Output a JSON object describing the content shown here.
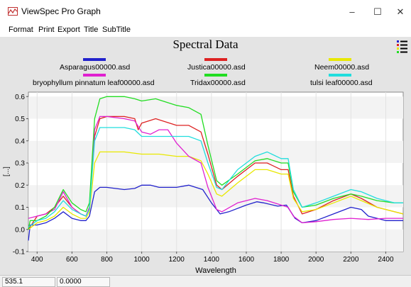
{
  "window": {
    "title": "ViewSpec Pro Graph",
    "min_glyph": "–",
    "max_glyph": "☐",
    "close_glyph": "✕"
  },
  "menu": [
    "Format",
    "Print",
    "Export",
    "Title",
    "SubTitle"
  ],
  "status": {
    "x_value": "535.1",
    "y_value": "0.0000"
  },
  "chart_data": {
    "type": "line",
    "title": "Spectral Data",
    "xlabel": "Wavelength",
    "ylabel": "[...]",
    "xlim": [
      350,
      2500
    ],
    "ylim": [
      -0.1,
      0.62
    ],
    "xticks": [
      400,
      600,
      800,
      1000,
      1200,
      1400,
      1600,
      1800,
      2000,
      2200,
      2400
    ],
    "yticks": [
      -0.1,
      0.0,
      0.1,
      0.2,
      0.3,
      0.4,
      0.5,
      0.6
    ],
    "grid": true,
    "legend_placement": "top",
    "series": [
      {
        "name": "Asparagus00000.asd",
        "color": "#2222cc",
        "points": [
          [
            350,
            -0.05
          ],
          [
            360,
            0.02
          ],
          [
            400,
            0.02
          ],
          [
            450,
            0.03
          ],
          [
            500,
            0.05
          ],
          [
            550,
            0.08
          ],
          [
            600,
            0.05
          ],
          [
            650,
            0.04
          ],
          [
            680,
            0.04
          ],
          [
            700,
            0.06
          ],
          [
            730,
            0.17
          ],
          [
            760,
            0.19
          ],
          [
            800,
            0.19
          ],
          [
            900,
            0.18
          ],
          [
            960,
            0.185
          ],
          [
            1000,
            0.2
          ],
          [
            1050,
            0.2
          ],
          [
            1100,
            0.19
          ],
          [
            1200,
            0.19
          ],
          [
            1270,
            0.2
          ],
          [
            1350,
            0.18
          ],
          [
            1400,
            0.12
          ],
          [
            1450,
            0.07
          ],
          [
            1500,
            0.08
          ],
          [
            1600,
            0.11
          ],
          [
            1660,
            0.125
          ],
          [
            1700,
            0.12
          ],
          [
            1780,
            0.105
          ],
          [
            1830,
            0.11
          ],
          [
            1880,
            0.05
          ],
          [
            1920,
            0.03
          ],
          [
            2000,
            0.04
          ],
          [
            2100,
            0.07
          ],
          [
            2200,
            0.1
          ],
          [
            2260,
            0.09
          ],
          [
            2300,
            0.06
          ],
          [
            2400,
            0.04
          ],
          [
            2500,
            0.04
          ]
        ]
      },
      {
        "name": "Justica00000.asd",
        "color": "#dd2222",
        "points": [
          [
            350,
            0.0
          ],
          [
            400,
            0.06
          ],
          [
            450,
            0.07
          ],
          [
            500,
            0.1
          ],
          [
            550,
            0.15
          ],
          [
            600,
            0.1
          ],
          [
            650,
            0.07
          ],
          [
            680,
            0.06
          ],
          [
            700,
            0.1
          ],
          [
            730,
            0.42
          ],
          [
            760,
            0.5
          ],
          [
            800,
            0.51
          ],
          [
            900,
            0.51
          ],
          [
            960,
            0.5
          ],
          [
            980,
            0.45
          ],
          [
            1000,
            0.48
          ],
          [
            1080,
            0.5
          ],
          [
            1200,
            0.47
          ],
          [
            1270,
            0.47
          ],
          [
            1340,
            0.44
          ],
          [
            1380,
            0.34
          ],
          [
            1430,
            0.2
          ],
          [
            1460,
            0.18
          ],
          [
            1550,
            0.24
          ],
          [
            1650,
            0.3
          ],
          [
            1720,
            0.3
          ],
          [
            1800,
            0.27
          ],
          [
            1840,
            0.27
          ],
          [
            1870,
            0.15
          ],
          [
            1920,
            0.07
          ],
          [
            2000,
            0.09
          ],
          [
            2100,
            0.13
          ],
          [
            2200,
            0.16
          ],
          [
            2260,
            0.14
          ],
          [
            2350,
            0.1
          ],
          [
            2450,
            0.08
          ],
          [
            2500,
            0.07
          ]
        ]
      },
      {
        "name": "Neem00000.asd",
        "color": "#e8e800",
        "points": [
          [
            350,
            0.0
          ],
          [
            400,
            0.03
          ],
          [
            450,
            0.04
          ],
          [
            500,
            0.06
          ],
          [
            550,
            0.1
          ],
          [
            600,
            0.07
          ],
          [
            650,
            0.05
          ],
          [
            680,
            0.05
          ],
          [
            700,
            0.08
          ],
          [
            730,
            0.3
          ],
          [
            760,
            0.35
          ],
          [
            900,
            0.35
          ],
          [
            1000,
            0.34
          ],
          [
            1100,
            0.34
          ],
          [
            1200,
            0.33
          ],
          [
            1270,
            0.33
          ],
          [
            1340,
            0.31
          ],
          [
            1380,
            0.25
          ],
          [
            1430,
            0.16
          ],
          [
            1460,
            0.15
          ],
          [
            1550,
            0.21
          ],
          [
            1650,
            0.27
          ],
          [
            1720,
            0.27
          ],
          [
            1800,
            0.25
          ],
          [
            1840,
            0.25
          ],
          [
            1870,
            0.14
          ],
          [
            1920,
            0.08
          ],
          [
            2000,
            0.09
          ],
          [
            2100,
            0.12
          ],
          [
            2200,
            0.15
          ],
          [
            2260,
            0.13
          ],
          [
            2350,
            0.1
          ],
          [
            2450,
            0.08
          ],
          [
            2500,
            0.07
          ]
        ]
      },
      {
        "name": "bryophyllum pinnatum leaf00000.asd",
        "color": "#e020d0",
        "points": [
          [
            350,
            0.05
          ],
          [
            400,
            0.06
          ],
          [
            450,
            0.07
          ],
          [
            500,
            0.09
          ],
          [
            550,
            0.17
          ],
          [
            600,
            0.1
          ],
          [
            650,
            0.07
          ],
          [
            680,
            0.06
          ],
          [
            700,
            0.1
          ],
          [
            730,
            0.45
          ],
          [
            760,
            0.51
          ],
          [
            800,
            0.51
          ],
          [
            900,
            0.5
          ],
          [
            960,
            0.49
          ],
          [
            1000,
            0.44
          ],
          [
            1050,
            0.43
          ],
          [
            1100,
            0.45
          ],
          [
            1150,
            0.45
          ],
          [
            1200,
            0.39
          ],
          [
            1270,
            0.33
          ],
          [
            1340,
            0.3
          ],
          [
            1380,
            0.19
          ],
          [
            1430,
            0.09
          ],
          [
            1460,
            0.08
          ],
          [
            1550,
            0.12
          ],
          [
            1650,
            0.14
          ],
          [
            1720,
            0.13
          ],
          [
            1800,
            0.11
          ],
          [
            1840,
            0.1
          ],
          [
            1870,
            0.06
          ],
          [
            1920,
            0.03
          ],
          [
            2000,
            0.035
          ],
          [
            2100,
            0.045
          ],
          [
            2200,
            0.05
          ],
          [
            2300,
            0.045
          ],
          [
            2400,
            0.05
          ],
          [
            2500,
            0.05
          ]
        ]
      },
      {
        "name": "Tridax00000.asd",
        "color": "#22dd22",
        "points": [
          [
            350,
            0.0
          ],
          [
            360,
            0.04
          ],
          [
            400,
            0.04
          ],
          [
            450,
            0.06
          ],
          [
            500,
            0.1
          ],
          [
            550,
            0.18
          ],
          [
            600,
            0.12
          ],
          [
            650,
            0.09
          ],
          [
            680,
            0.08
          ],
          [
            700,
            0.12
          ],
          [
            730,
            0.5
          ],
          [
            760,
            0.59
          ],
          [
            800,
            0.6
          ],
          [
            900,
            0.6
          ],
          [
            960,
            0.59
          ],
          [
            1000,
            0.58
          ],
          [
            1080,
            0.59
          ],
          [
            1200,
            0.56
          ],
          [
            1270,
            0.55
          ],
          [
            1340,
            0.52
          ],
          [
            1380,
            0.38
          ],
          [
            1430,
            0.22
          ],
          [
            1460,
            0.2
          ],
          [
            1550,
            0.25
          ],
          [
            1650,
            0.31
          ],
          [
            1720,
            0.32
          ],
          [
            1800,
            0.3
          ],
          [
            1840,
            0.3
          ],
          [
            1870,
            0.17
          ],
          [
            1920,
            0.1
          ],
          [
            2000,
            0.11
          ],
          [
            2100,
            0.14
          ],
          [
            2200,
            0.16
          ],
          [
            2260,
            0.15
          ],
          [
            2350,
            0.13
          ],
          [
            2450,
            0.12
          ],
          [
            2500,
            0.12
          ]
        ]
      },
      {
        "name": "tulsi leaf00000.asd",
        "color": "#22dddd",
        "points": [
          [
            350,
            0.01
          ],
          [
            400,
            0.04
          ],
          [
            450,
            0.05
          ],
          [
            500,
            0.08
          ],
          [
            550,
            0.13
          ],
          [
            600,
            0.09
          ],
          [
            650,
            0.07
          ],
          [
            680,
            0.06
          ],
          [
            700,
            0.09
          ],
          [
            730,
            0.4
          ],
          [
            760,
            0.46
          ],
          [
            900,
            0.46
          ],
          [
            960,
            0.45
          ],
          [
            1000,
            0.42
          ],
          [
            1100,
            0.42
          ],
          [
            1200,
            0.42
          ],
          [
            1270,
            0.42
          ],
          [
            1340,
            0.4
          ],
          [
            1380,
            0.3
          ],
          [
            1430,
            0.19
          ],
          [
            1460,
            0.18
          ],
          [
            1550,
            0.27
          ],
          [
            1650,
            0.33
          ],
          [
            1720,
            0.35
          ],
          [
            1800,
            0.32
          ],
          [
            1840,
            0.32
          ],
          [
            1870,
            0.18
          ],
          [
            1920,
            0.1
          ],
          [
            2000,
            0.12
          ],
          [
            2100,
            0.15
          ],
          [
            2200,
            0.18
          ],
          [
            2260,
            0.17
          ],
          [
            2350,
            0.14
          ],
          [
            2450,
            0.12
          ],
          [
            2500,
            0.12
          ]
        ]
      }
    ]
  }
}
